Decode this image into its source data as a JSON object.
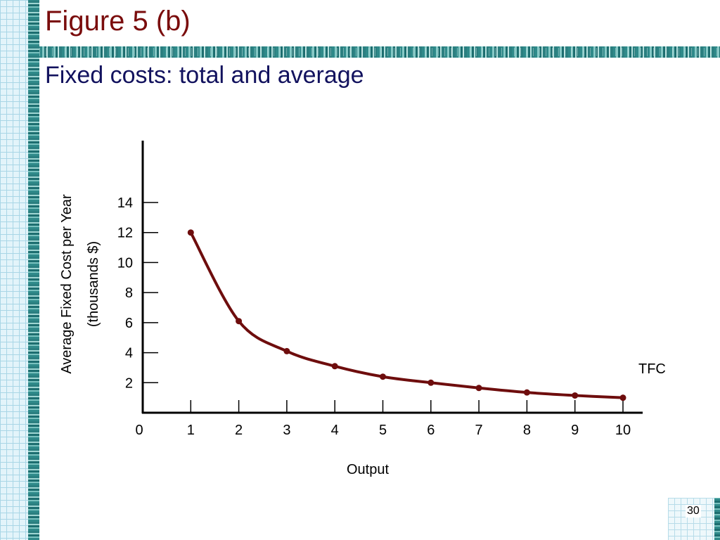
{
  "slide": {
    "title": "Figure 5 (b)",
    "subtitle": "Fixed costs: total and average",
    "page_number": "30"
  },
  "colors": {
    "title": "#7a0c0c",
    "subtitle": "#12125e",
    "curve": "#6e0d0d",
    "axis": "#000000"
  },
  "chart_data": {
    "type": "line",
    "x": [
      1,
      2,
      3,
      4,
      5,
      6,
      7,
      8,
      9,
      10
    ],
    "y": [
      12,
      6.1,
      4.1,
      3.1,
      2.4,
      2.0,
      1.65,
      1.35,
      1.15,
      1.0
    ],
    "xticks": [
      "0",
      "1",
      "2",
      "3",
      "4",
      "5",
      "6",
      "7",
      "8",
      "9",
      "10"
    ],
    "yticks": [
      "2",
      "4",
      "6",
      "8",
      "10",
      "12",
      "14"
    ],
    "xlabel": "Output",
    "ylabel_line1": "Average Fixed Cost per Year",
    "ylabel_line2": "(thousands $)",
    "curve_label": "TFC",
    "xlim": [
      0,
      10.4
    ],
    "ylim": [
      0,
      18
    ],
    "grid": false
  }
}
